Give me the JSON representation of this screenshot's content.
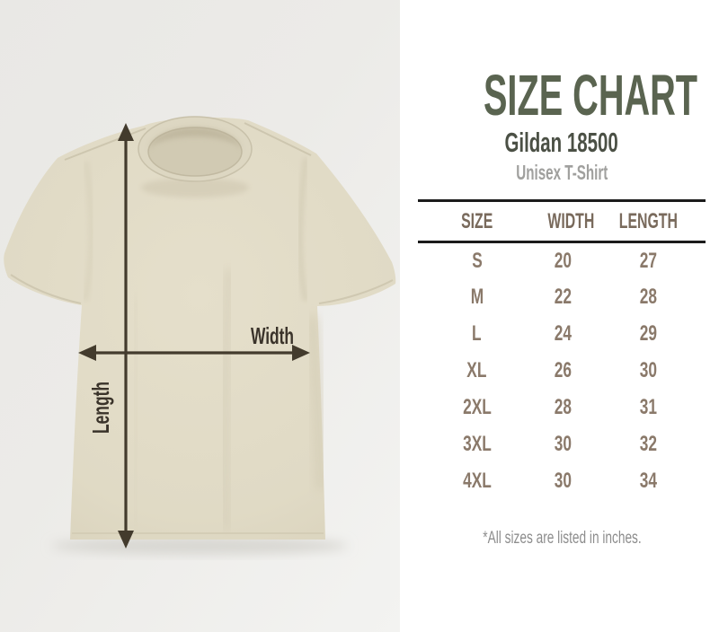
{
  "photo": {
    "width_label": "Width",
    "length_label": "Length",
    "colors": {
      "background": "#ebeae7",
      "shirt_fabric": "#e0dac5",
      "collar_shadow": "#b2a98f",
      "arrow": "#433b2d",
      "label_text": "#3a332a"
    }
  },
  "panel": {
    "title": "SIZE CHART",
    "subtitle": "Gildan 18500",
    "product_type": "Unisex T-Shirt",
    "footnote": "*All sizes are listed in inches.",
    "colors": {
      "title": "#5a6450",
      "subtitle": "#4b5045",
      "product_type": "#a0a09e",
      "table_header": "#796a5c",
      "table_data": "#8a796a",
      "rule": "#1b1b1b",
      "footnote": "#8d8d8d"
    }
  },
  "chart_data": {
    "type": "table",
    "title": "SIZE CHART",
    "subtitle": "Gildan 18500",
    "product": "Unisex T-Shirt",
    "units": "inches",
    "columns": [
      "SIZE",
      "WIDTH",
      "LENGTH"
    ],
    "rows": [
      [
        "S",
        20,
        27
      ],
      [
        "M",
        22,
        28
      ],
      [
        "L",
        24,
        29
      ],
      [
        "XL",
        26,
        30
      ],
      [
        "2XL",
        28,
        31
      ],
      [
        "3XL",
        30,
        32
      ],
      [
        "4XL",
        30,
        34
      ]
    ],
    "footnote": "*All sizes are listed in inches."
  }
}
